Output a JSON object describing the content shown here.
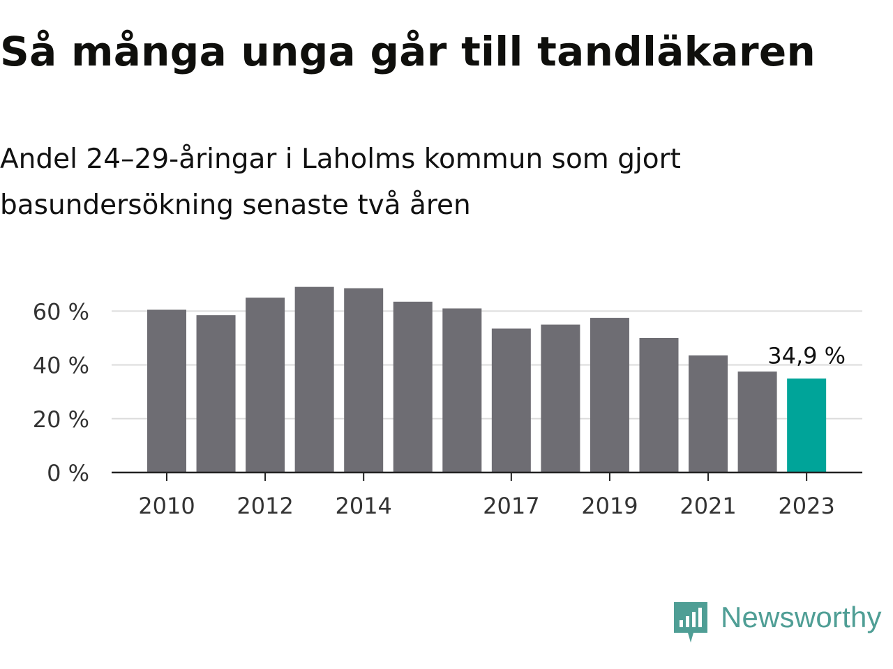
{
  "title": "Så många unga går till tandläkaren",
  "subtitle": "Andel 24–29-åringar i Laholms kommun som gjort basundersökning senaste två åren",
  "brand": "Newsworthy",
  "colors": {
    "bar": "#6e6d73",
    "highlight": "#00a499",
    "grid": "#dcdcdc",
    "axis": "#222222",
    "brand": "#4f9e95"
  },
  "chart_data": {
    "type": "bar",
    "title": "Så många unga går till tandläkaren",
    "subtitle": "Andel 24–29-åringar i Laholms kommun som gjort basundersökning senaste två åren",
    "categories": [
      "2010",
      "2011",
      "2012",
      "2013",
      "2014",
      "2015",
      "2016",
      "2017",
      "2018",
      "2019",
      "2020",
      "2021",
      "2022",
      "2023"
    ],
    "values": [
      60.5,
      58.5,
      65,
      69,
      68.5,
      63.5,
      61,
      53.5,
      55,
      57.5,
      50,
      43.5,
      37.5,
      34.9
    ],
    "x_tick_labels": [
      "2010",
      "2012",
      "2014",
      "2017",
      "2019",
      "2021",
      "2023"
    ],
    "y_ticks": [
      "0 %",
      "20 %",
      "40 %",
      "60 %"
    ],
    "y_tick_values": [
      0,
      20,
      40,
      60
    ],
    "ylim": [
      0,
      70
    ],
    "highlight_index": 13,
    "highlight_label": "34,9 %",
    "grid": true,
    "legend": "none"
  }
}
